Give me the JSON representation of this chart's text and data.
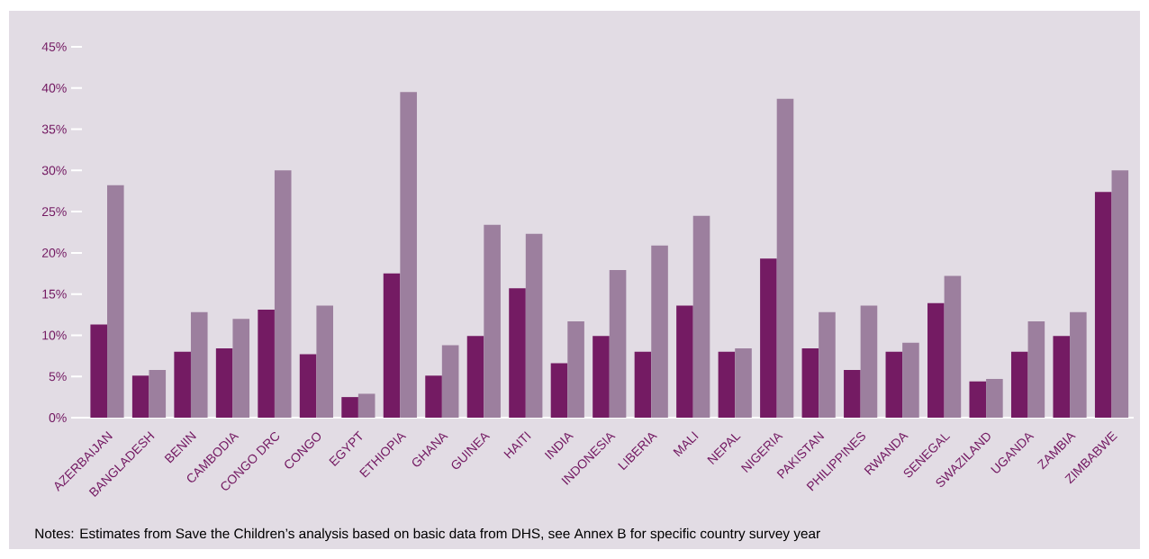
{
  "chart_data": {
    "type": "bar",
    "categories": [
      "AZERBAIJAN",
      "BANGLADESH",
      "BENIN",
      "CAMBODIA",
      "CONGO DRC",
      "CONGO",
      "EGYPT",
      "ETHIOPIA",
      "GHANA",
      "GUINEA",
      "HAITI",
      "INDIA",
      "INDONESIA",
      "LIBERIA",
      "MALI",
      "NEPAL",
      "NIGERIA",
      "PAKISTAN",
      "PHILIPPINES",
      "RWANDA",
      "SENEGAL",
      "SWAZILAND",
      "UGANDA",
      "ZAMBIA",
      "ZIMBABWE"
    ],
    "series": [
      {
        "color": "#741b63",
        "values": [
          11.3,
          5.1,
          8.0,
          8.4,
          13.1,
          7.7,
          2.5,
          17.5,
          5.1,
          9.9,
          15.7,
          6.6,
          9.9,
          8.0,
          13.6,
          8.0,
          19.3,
          8.4,
          5.8,
          8.0,
          13.9,
          4.4,
          8.0,
          9.9,
          27.4
        ]
      },
      {
        "color": "#9c7f9e",
        "values": [
          28.2,
          5.8,
          12.8,
          12.0,
          30.0,
          13.6,
          2.9,
          39.5,
          8.8,
          23.4,
          22.3,
          11.7,
          17.9,
          20.9,
          24.5,
          8.4,
          38.7,
          12.8,
          13.6,
          9.1,
          17.2,
          4.7,
          11.7,
          12.8,
          30.0
        ]
      }
    ],
    "ylim": [
      0,
      45
    ],
    "yticks": [
      {
        "value": 0,
        "label": "0%"
      },
      {
        "value": 5,
        "label": "5%"
      },
      {
        "value": 10,
        "label": "10%"
      },
      {
        "value": 15,
        "label": "15%"
      },
      {
        "value": 20,
        "label": "20%"
      },
      {
        "value": 25,
        "label": "25%"
      },
      {
        "value": 30,
        "label": "30%"
      },
      {
        "value": 35,
        "label": "35%"
      },
      {
        "value": 40,
        "label": "40%"
      },
      {
        "value": 45,
        "label": "45%"
      }
    ],
    "annotations": [
      "Notes: Estimates from Save the Children’s analysis based on basic data from DHS, see Annex B for specific country survey year"
    ]
  }
}
